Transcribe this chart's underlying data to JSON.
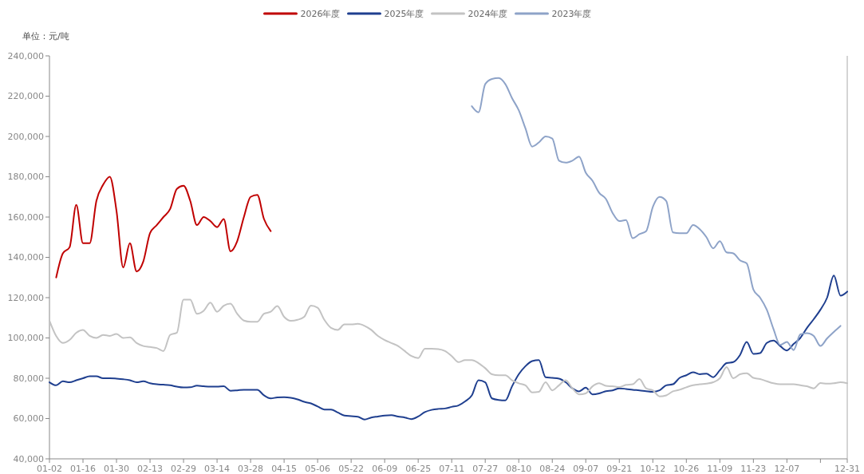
{
  "chart_data": {
    "type": "line",
    "legend": "top",
    "annotations": [
      "单位：元/吨"
    ],
    "categories": [
      "01-02",
      null,
      null,
      null,
      null,
      "01-16",
      null,
      null,
      null,
      null,
      "01-30",
      null,
      null,
      null,
      null,
      "02-13",
      null,
      null,
      null,
      null,
      "02-29",
      null,
      null,
      null,
      null,
      "03-14",
      null,
      null,
      null,
      null,
      "03-28",
      null,
      null,
      null,
      null,
      "04-15",
      null,
      null,
      null,
      null,
      "05-06",
      null,
      null,
      null,
      null,
      "05-22",
      null,
      null,
      null,
      null,
      "06-09",
      null,
      null,
      null,
      null,
      "06-25",
      null,
      null,
      null,
      null,
      "07-11",
      null,
      null,
      null,
      null,
      "07-27",
      null,
      null,
      null,
      null,
      "08-10",
      null,
      null,
      null,
      null,
      "08-24",
      null,
      null,
      null,
      null,
      "09-07",
      null,
      null,
      null,
      null,
      "09-21",
      null,
      null,
      null,
      null,
      "10-12",
      null,
      null,
      null,
      null,
      "10-26",
      null,
      null,
      null,
      null,
      "11-09",
      null,
      null,
      null,
      null,
      "11-23",
      null,
      null,
      null,
      null,
      "12-07",
      null,
      null,
      null,
      null,
      null,
      null,
      null,
      null,
      "12-31"
    ],
    "ylim": [
      40000,
      240000
    ],
    "yticks": [
      {
        "value": 40000,
        "label": "40,000"
      },
      {
        "value": 60000,
        "label": "60,000"
      },
      {
        "value": 80000,
        "label": "80,000"
      },
      {
        "value": 100000,
        "label": "100,000"
      },
      {
        "value": 120000,
        "label": "120,000"
      },
      {
        "value": 140000,
        "label": "140,000"
      },
      {
        "value": 160000,
        "label": "160,000"
      },
      {
        "value": 180000,
        "label": "180,000"
      },
      {
        "value": 200000,
        "label": "200,000"
      },
      {
        "value": 220000,
        "label": "220,000"
      },
      {
        "value": 240000,
        "label": "240,000"
      }
    ],
    "series": [
      {
        "name": "2026年度",
        "color": "#c00000",
        "values": [
          null,
          130000,
          142000,
          145000,
          166000,
          147000,
          147000,
          168000,
          176000,
          180000,
          163000,
          135000,
          147000,
          133000,
          138000,
          152000,
          156000,
          160000,
          164000,
          174000,
          175500,
          168000,
          156000,
          160000,
          158000,
          155000,
          159000,
          143000,
          148000,
          160000,
          170000,
          171000,
          159000,
          153000,
          null,
          null,
          null,
          null,
          null,
          null,
          null,
          null,
          null,
          null,
          null,
          null,
          null,
          null,
          null,
          null,
          null,
          null,
          null,
          null,
          null,
          null,
          null,
          null,
          null,
          null,
          null,
          null,
          null,
          null,
          null,
          null,
          null,
          null,
          null,
          null,
          null,
          null,
          null,
          null,
          null,
          null,
          null,
          null,
          null,
          null,
          null,
          null,
          null,
          null,
          null,
          null,
          null,
          null,
          null,
          null,
          null,
          null,
          null,
          null,
          null,
          null,
          null,
          null,
          null,
          null,
          null,
          null,
          null,
          null,
          null,
          null,
          null,
          null,
          null,
          null,
          null,
          null,
          null,
          null,
          null,
          null,
          null,
          null,
          null,
          null
        ]
      },
      {
        "name": "2025年度",
        "color": "#1f3f8f",
        "values": [
          78000,
          76500,
          78500,
          78000,
          79000,
          80000,
          81000,
          81000,
          80000,
          80000,
          79800,
          79500,
          79000,
          78000,
          78500,
          77500,
          77000,
          76800,
          76500,
          75800,
          75400,
          75500,
          76300,
          76000,
          75800,
          75800,
          76000,
          73800,
          74000,
          74300,
          74300,
          74300,
          71500,
          70000,
          70500,
          70600,
          70300,
          69500,
          68300,
          67500,
          66000,
          64500,
          64500,
          63000,
          61500,
          61200,
          60900,
          59500,
          60500,
          61000,
          61500,
          61700,
          61000,
          60500,
          59700,
          61000,
          63200,
          64300,
          64800,
          65000,
          65800,
          66500,
          68500,
          71500,
          79000,
          78000,
          70000,
          69200,
          69000,
          76000,
          82000,
          86000,
          88500,
          89000,
          80500,
          80200,
          79800,
          78000,
          75000,
          73500,
          75300,
          72000,
          72500,
          73600,
          74000,
          75000,
          74700,
          74300,
          74000,
          73600,
          73300,
          74000,
          76500,
          77000,
          80200,
          81500,
          83000,
          82000,
          82300,
          80500,
          84000,
          87500,
          88000,
          91500,
          98000,
          92100,
          92500,
          97500,
          98700,
          96000,
          93800,
          97000,
          100000,
          105000,
          109300,
          114000,
          120000,
          131000,
          121000,
          123000
        ]
      },
      {
        "name": "2024年度",
        "color": "#c3c3c3",
        "values": [
          108600,
          101000,
          97500,
          99000,
          102600,
          104000,
          101000,
          100000,
          101500,
          101000,
          102000,
          100000,
          100300,
          97500,
          96000,
          95500,
          95000,
          93500,
          101500,
          102600,
          119000,
          119000,
          112000,
          113500,
          117500,
          113000,
          116000,
          117000,
          112000,
          108600,
          108000,
          108000,
          112000,
          113000,
          115800,
          110500,
          108500,
          109000,
          110500,
          116000,
          115000,
          109000,
          105000,
          104000,
          106700,
          106700,
          107000,
          106000,
          104000,
          101000,
          99000,
          97500,
          96000,
          93500,
          91000,
          90000,
          94700,
          94700,
          94500,
          93500,
          91000,
          88000,
          89000,
          89000,
          87500,
          85000,
          82000,
          81500,
          81500,
          79000,
          77500,
          76500,
          73000,
          73300,
          78000,
          74000,
          76500,
          79000,
          75000,
          72000,
          72500,
          76000,
          77500,
          76200,
          76000,
          75600,
          76700,
          77000,
          79600,
          75000,
          74000,
          71000,
          71500,
          73500,
          74300,
          75500,
          76500,
          77000,
          77300,
          78000,
          80000,
          85500,
          80000,
          82000,
          82500,
          80200,
          79600,
          78500,
          77500,
          77000,
          77000,
          77000,
          76500,
          76000,
          75000,
          77600,
          77300,
          77500,
          78000,
          77500
        ]
      },
      {
        "name": "2023年度",
        "color": "#8ea3c8",
        "values": [
          null,
          null,
          null,
          null,
          null,
          null,
          null,
          null,
          null,
          null,
          null,
          null,
          null,
          null,
          null,
          null,
          null,
          null,
          null,
          null,
          null,
          null,
          null,
          null,
          null,
          null,
          null,
          null,
          null,
          null,
          null,
          null,
          null,
          null,
          null,
          null,
          null,
          null,
          null,
          null,
          null,
          null,
          null,
          null,
          null,
          null,
          null,
          null,
          null,
          null,
          null,
          null,
          null,
          null,
          null,
          null,
          null,
          null,
          null,
          null,
          null,
          null,
          null,
          215000,
          212000,
          226000,
          228500,
          229000,
          226000,
          219000,
          213000,
          204000,
          195000,
          197000,
          200000,
          199000,
          188000,
          187000,
          188000,
          190000,
          182000,
          178000,
          172000,
          169000,
          162000,
          158000,
          158500,
          149500,
          151500,
          153000,
          165000,
          170000,
          168000,
          152400,
          152000,
          152000,
          156000,
          154000,
          150000,
          144500,
          148000,
          142500,
          142000,
          138500,
          137000,
          124000,
          120000,
          114000,
          104400,
          96500,
          98000,
          94000,
          101800,
          102400,
          101000,
          96000,
          99800,
          103000,
          106000,
          null
        ]
      }
    ]
  }
}
